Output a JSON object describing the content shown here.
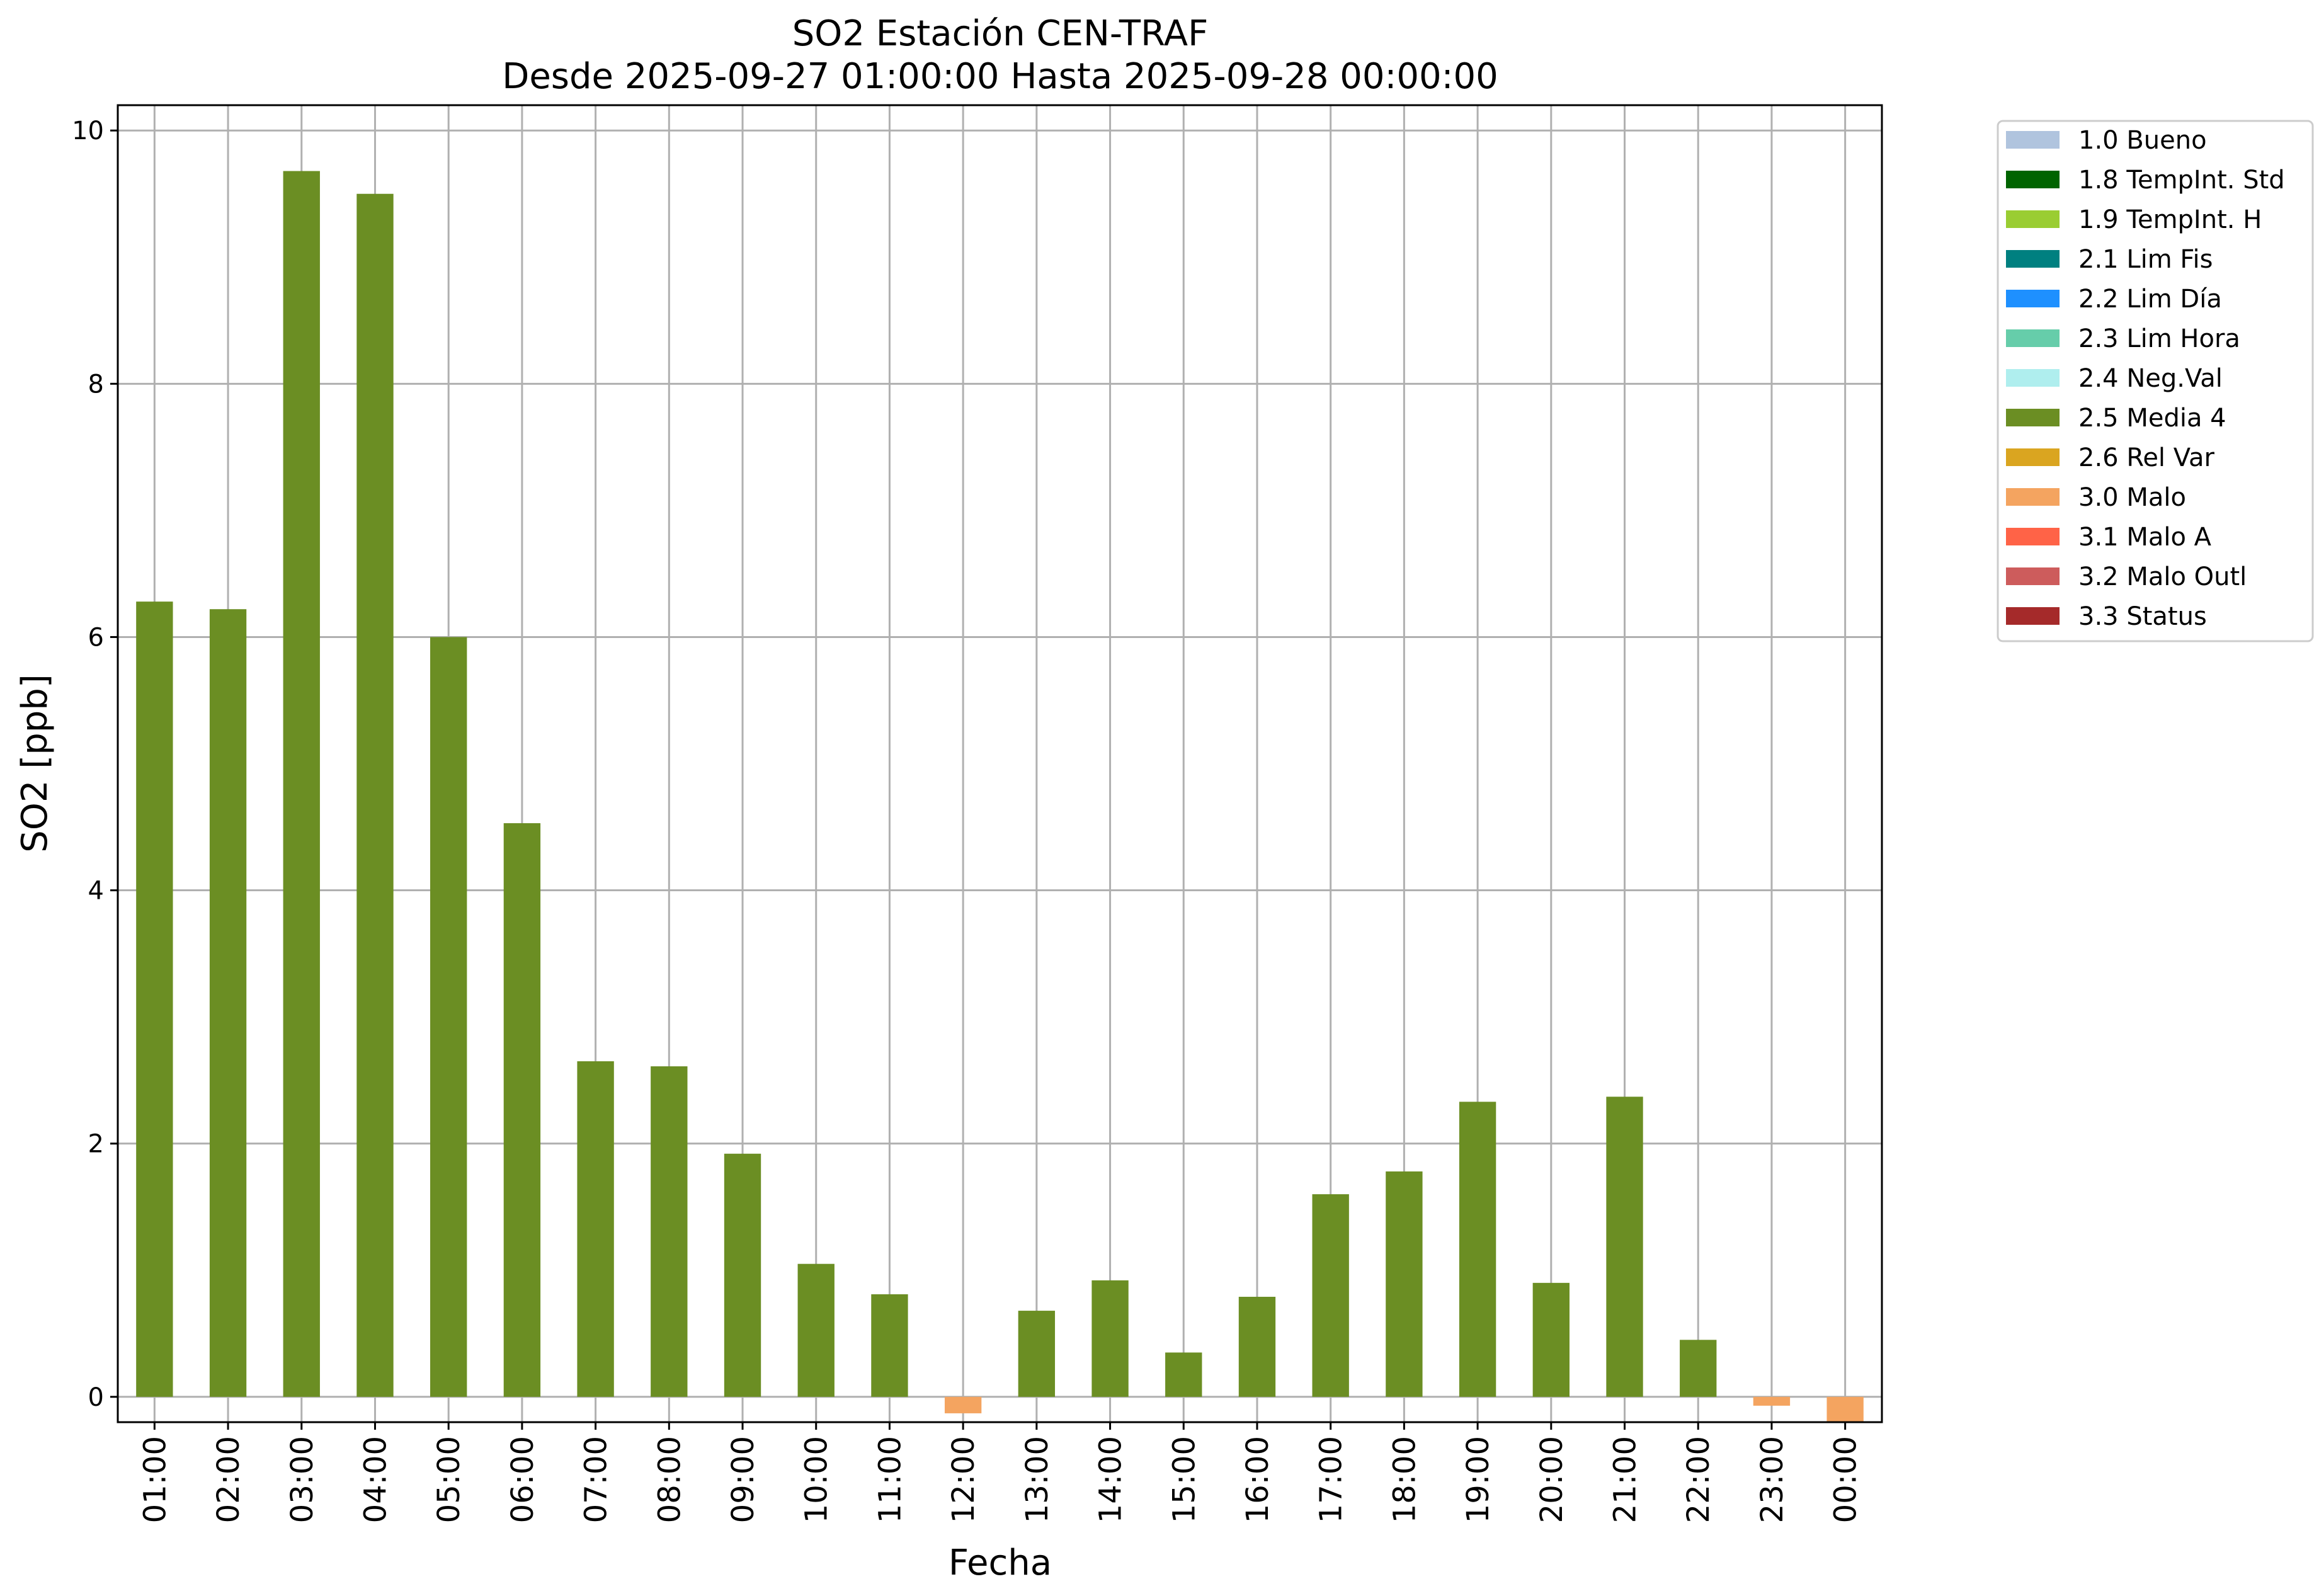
{
  "chart_data": {
    "type": "bar",
    "title": "SO2 Estación CEN-TRAF",
    "subtitle": "Desde 2025-09-27 01:00:00 Hasta 2025-09-28 00:00:00",
    "xlabel": "Fecha",
    "ylabel": "SO2 [ppb]",
    "ylim": [
      -0.2,
      10.2
    ],
    "yticks": [
      0,
      2,
      4,
      6,
      8,
      10
    ],
    "grid": true,
    "legend_position": "outside-top-right",
    "categories": [
      "01:00",
      "02:00",
      "03:00",
      "04:00",
      "05:00",
      "06:00",
      "07:00",
      "08:00",
      "09:00",
      "10:00",
      "11:00",
      "12:00",
      "13:00",
      "14:00",
      "15:00",
      "16:00",
      "17:00",
      "18:00",
      "19:00",
      "20:00",
      "21:00",
      "22:00",
      "23:00",
      "00:00"
    ],
    "values": [
      6.28,
      6.22,
      9.68,
      9.5,
      6.0,
      4.53,
      2.65,
      2.61,
      1.92,
      1.05,
      0.81,
      -0.13,
      0.68,
      0.92,
      0.35,
      0.79,
      1.6,
      1.78,
      2.33,
      0.9,
      2.37,
      0.45,
      -0.07,
      -0.2
    ],
    "flags": [
      "2.5 Media 4",
      "2.5 Media 4",
      "2.5 Media 4",
      "2.5 Media 4",
      "2.5 Media 4",
      "2.5 Media 4",
      "2.5 Media 4",
      "2.5 Media 4",
      "2.5 Media 4",
      "2.5 Media 4",
      "2.5 Media 4",
      "3.0 Malo",
      "2.5 Media 4",
      "2.5 Media 4",
      "2.5 Media 4",
      "2.5 Media 4",
      "2.5 Media 4",
      "2.5 Media 4",
      "2.5 Media 4",
      "2.5 Media 4",
      "2.5 Media 4",
      "2.5 Media 4",
      "3.0 Malo",
      "3.0 Malo"
    ],
    "legend": [
      {
        "label": "1.0 Bueno",
        "color": "#b0c4de"
      },
      {
        "label": "1.8 TempInt. Std",
        "color": "#006400"
      },
      {
        "label": "1.9 TempInt. H",
        "color": "#9acd32"
      },
      {
        "label": "2.1 Lim Fis",
        "color": "#008080"
      },
      {
        "label": "2.2 Lim Día",
        "color": "#1e90ff"
      },
      {
        "label": "2.3 Lim Hora",
        "color": "#66cdaa"
      },
      {
        "label": "2.4 Neg.Val",
        "color": "#afeeee"
      },
      {
        "label": "2.5 Media 4",
        "color": "#6b8e23"
      },
      {
        "label": "2.6 Rel Var",
        "color": "#daa520"
      },
      {
        "label": "3.0 Malo",
        "color": "#f4a460"
      },
      {
        "label": "3.1 Malo A",
        "color": "#ff6347"
      },
      {
        "label": "3.2 Malo Outl",
        "color": "#cd5c5c"
      },
      {
        "label": "3.3 Status",
        "color": "#a52a2a"
      }
    ]
  }
}
